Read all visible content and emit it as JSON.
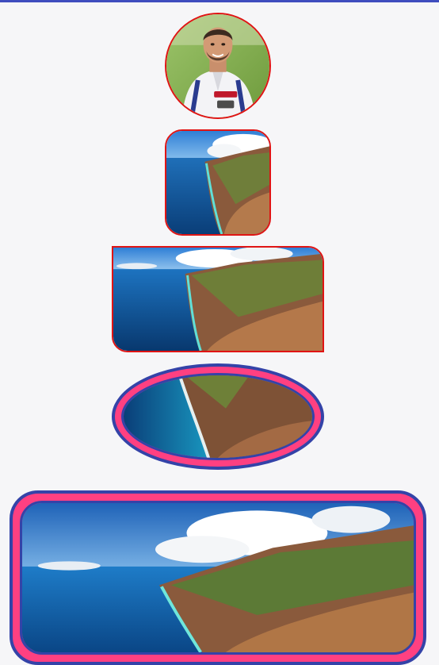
{
  "screen": {
    "accent_color": "#3f4dbe",
    "stroke_red": "#e01414",
    "ring_pink": "#ff4081",
    "ring_blue": "#3443a8"
  },
  "images": [
    {
      "name": "avatar-player-photo",
      "kind": "portrait",
      "shape": "circle"
    },
    {
      "name": "coastline-rounded-square",
      "kind": "landscape",
      "shape": "rounded-square"
    },
    {
      "name": "coastline-cut-corner",
      "kind": "landscape",
      "shape": "cut-corner-rectangle"
    },
    {
      "name": "coastline-oval-ring",
      "kind": "landscape",
      "shape": "oval"
    },
    {
      "name": "coastline-large-rounded",
      "kind": "landscape",
      "shape": "rounded-rectangle"
    }
  ]
}
